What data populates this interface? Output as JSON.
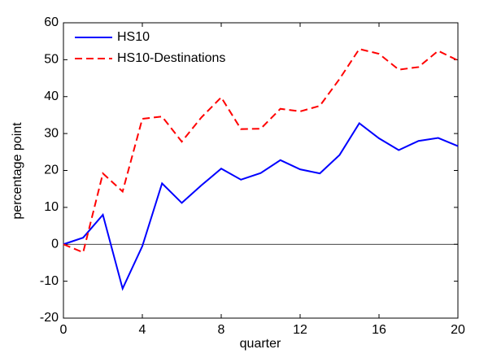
{
  "chart_data": {
    "type": "line",
    "xlabel": "quarter",
    "ylabel": "percentage point",
    "x": [
      0,
      1,
      2,
      3,
      4,
      5,
      6,
      7,
      8,
      9,
      10,
      11,
      12,
      13,
      14,
      15,
      16,
      17,
      18,
      19,
      20
    ],
    "series": [
      {
        "name": "HS10",
        "color": "#0000ff",
        "dash": false,
        "values": [
          0,
          1.8,
          8,
          -12,
          -0.5,
          16.5,
          11.2,
          16,
          20.5,
          17.5,
          19.3,
          22.8,
          20.3,
          19.2,
          24.2,
          32.8,
          28.7,
          25.5,
          28,
          28.8,
          26.6
        ]
      },
      {
        "name": "HS10-Destinations",
        "color": "#ff0000",
        "dash": true,
        "values": [
          0,
          -2.2,
          19.2,
          14.3,
          34,
          34.6,
          27.8,
          34.4,
          39.8,
          31.2,
          31.3,
          36.7,
          36,
          37.5,
          44.8,
          52.9,
          51.6,
          47.3,
          48,
          52.4,
          49.8
        ]
      }
    ],
    "xlim": [
      0,
      20
    ],
    "xticks": [
      0,
      4,
      8,
      12,
      16,
      20
    ],
    "ylim": [
      -20,
      60
    ],
    "yticks": [
      -20,
      -10,
      0,
      10,
      20,
      30,
      40,
      50,
      60
    ],
    "grid": false,
    "legend": "upper left"
  }
}
